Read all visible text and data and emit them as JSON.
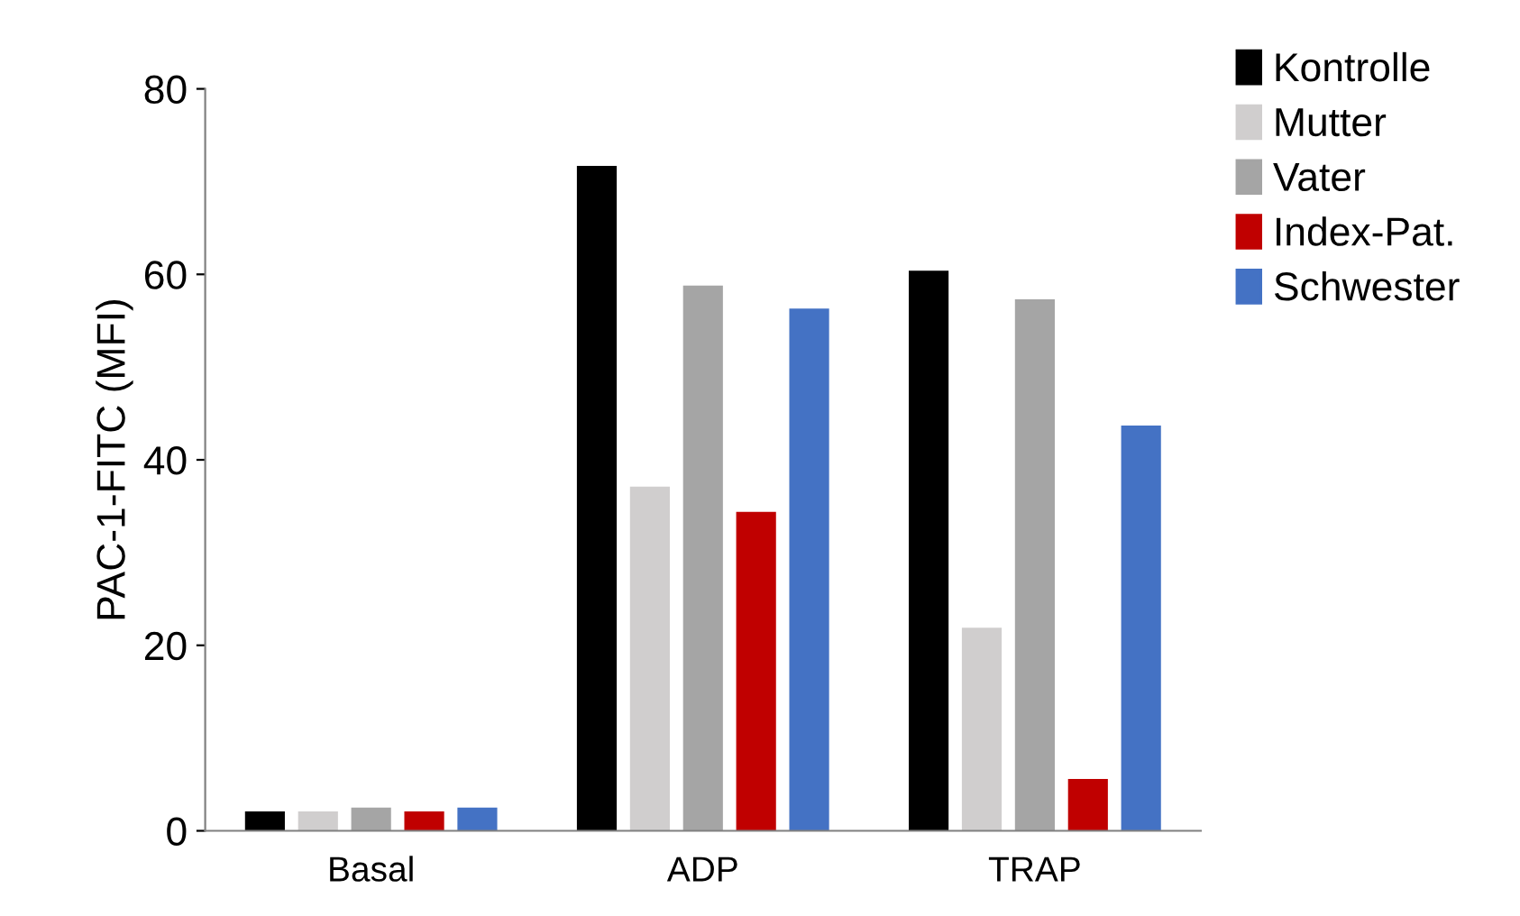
{
  "chart_data": {
    "type": "bar",
    "ylabel": "PAC-1-FITC (MFI)",
    "categories": [
      "Basal",
      "ADP",
      "TRAP"
    ],
    "series": [
      {
        "name": "Kontrolle",
        "color": "#000000",
        "values": [
          2.1,
          71.7,
          60.4
        ]
      },
      {
        "name": "Mutter",
        "color": "#d0cece",
        "values": [
          2.1,
          37.1,
          21.9
        ]
      },
      {
        "name": "Vater",
        "color": "#a5a5a5",
        "values": [
          2.5,
          58.8,
          57.3
        ]
      },
      {
        "name": "Index-Pat.",
        "color": "#c00000",
        "values": [
          2.1,
          34.4,
          5.6
        ]
      },
      {
        "name": "Schwester",
        "color": "#4472c4",
        "values": [
          2.5,
          56.3,
          43.7
        ]
      }
    ],
    "ylim": [
      0,
      80
    ],
    "yticks": [
      0,
      20,
      40,
      60,
      80
    ],
    "grid": false,
    "legend": "top right"
  }
}
